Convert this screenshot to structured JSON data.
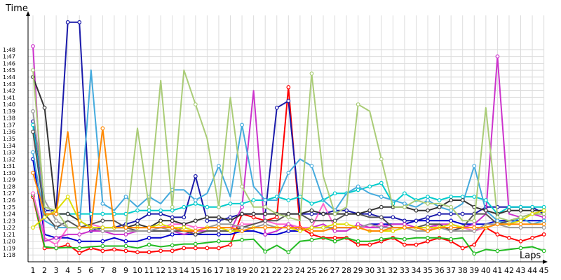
{
  "chart_data": {
    "type": "line",
    "ylabel": "Time",
    "xlabel": "Laps",
    "x": [
      1,
      2,
      3,
      4,
      5,
      6,
      7,
      8,
      9,
      10,
      11,
      12,
      13,
      14,
      15,
      16,
      17,
      18,
      19,
      20,
      21,
      22,
      23,
      24,
      25,
      26,
      27,
      28,
      29,
      30,
      31,
      32,
      33,
      34,
      35,
      36,
      37,
      38,
      39,
      40,
      41,
      42,
      43,
      44,
      45
    ],
    "x_tick_labels": [
      "1",
      "2",
      "3",
      "4",
      "5",
      "6",
      "7",
      "8",
      "9",
      "10",
      "11",
      "12",
      "13",
      "14",
      "15",
      "16",
      "17",
      "18",
      "19",
      "20",
      "21",
      "22",
      "23",
      "24",
      "25",
      "26",
      "27",
      "28",
      "29",
      "30",
      "31",
      "32",
      "33",
      "34",
      "35",
      "36",
      "37",
      "38",
      "39",
      "40",
      "41",
      "42",
      "43",
      "44",
      "45"
    ],
    "ylim": [
      77,
      113
    ],
    "y_tick_labels": [
      "1:18",
      "1:19",
      "1:20",
      "1:21",
      "1:22",
      "1:23",
      "1:24",
      "1:25",
      "1:26",
      "1:27",
      "1:28",
      "1:29",
      "1:30",
      "1:31",
      "1:32",
      "1:33",
      "1:34",
      "1:35",
      "1:36",
      "1:37",
      "1:38",
      "1:39",
      "1:40",
      "1:41",
      "1:42",
      "1:43",
      "1:44",
      "1:45",
      "1:46",
      "1:47",
      "1:48"
    ],
    "y_tick_values": [
      78,
      79,
      80,
      81,
      82,
      83,
      84,
      85,
      86,
      87,
      88,
      89,
      90,
      91,
      92,
      93,
      94,
      95,
      96,
      97,
      98,
      99,
      100,
      101,
      102,
      103,
      104,
      105,
      106,
      107,
      108
    ],
    "grid": true,
    "series": [
      {
        "color": "#ff0000",
        "values": [
          86.5,
          79.0,
          79.0,
          79.5,
          78.3,
          79.0,
          78.6,
          78.8,
          78.6,
          78.4,
          78.4,
          78.6,
          78.6,
          79.0,
          79.0,
          79.0,
          79.0,
          79.5,
          84.0,
          83.5,
          83.0,
          83.5,
          102.5,
          82.0,
          81.0,
          80.5,
          80.5,
          80.5,
          79.5,
          79.5,
          80.0,
          80.5,
          79.5,
          79.5,
          80.0,
          80.5,
          80.0,
          79.0,
          79.5,
          82.0,
          81.0,
          80.5,
          80.0,
          80.5,
          81.0
        ]
      },
      {
        "color": "#22bb22",
        "values": [
          86.8,
          79.2,
          79.0,
          79.1,
          79.0,
          79.2,
          79.3,
          79.3,
          79.3,
          79.0,
          79.5,
          79.2,
          79.4,
          79.6,
          79.6,
          79.8,
          80.0,
          80.0,
          80.2,
          80.3,
          78.5,
          79.4,
          78.4,
          80.0,
          80.2,
          80.5,
          80.0,
          80.5,
          80.0,
          80.0,
          80.3,
          80.5,
          80.3,
          80.5,
          80.5,
          80.5,
          80.3,
          80.5,
          78.2,
          78.8,
          78.6,
          78.8,
          79.0,
          79.2,
          78.6
        ]
      },
      {
        "color": "#0000cc",
        "values": [
          92.0,
          81.0,
          80.5,
          80.5,
          80.0,
          80.0,
          80.0,
          80.5,
          80.0,
          80.0,
          80.5,
          80.5,
          81.0,
          81.0,
          81.0,
          81.0,
          81.0,
          81.0,
          81.5,
          81.5,
          81.0,
          81.0,
          81.5,
          81.5,
          82.0,
          82.0,
          82.0,
          82.0,
          82.0,
          82.5,
          82.5,
          82.5,
          82.5,
          83.0,
          83.0,
          83.0,
          83.0,
          82.5,
          82.5,
          82.5,
          83.0,
          83.0,
          83.0,
          83.0,
          83.0
        ]
      },
      {
        "color": "#1a1aaa",
        "values": [
          97.5,
          84.5,
          84.5,
          112,
          112,
          81.5,
          82.0,
          82.0,
          82.5,
          83.0,
          84.0,
          84.0,
          83.5,
          83.5,
          89.5,
          83.0,
          83.0,
          83.5,
          84.0,
          84.0,
          84.0,
          99.5,
          100.5,
          84.0,
          84.0,
          84.0,
          84.5,
          84.5,
          84.0,
          84.0,
          83.5,
          83.5,
          83.0,
          83.0,
          83.5,
          84.0,
          84.0,
          84.0,
          84.0,
          85.0,
          85.0,
          85.0,
          85.0,
          85.0,
          84.0
        ]
      },
      {
        "color": "#ff66cc",
        "values": [
          87.0,
          80.5,
          79.5,
          82.0,
          82.0,
          82.5,
          82.0,
          82.0,
          82.0,
          82.0,
          82.0,
          82.0,
          82.5,
          82.5,
          82.0,
          82.0,
          82.0,
          82.0,
          82.5,
          82.5,
          83.0,
          82.5,
          82.5,
          82.0,
          82.0,
          85.5,
          82.0,
          82.0,
          82.0,
          82.0,
          82.5,
          81.5,
          82.0,
          82.0,
          81.5,
          82.5,
          81.5,
          82.0,
          81.5,
          82.0,
          82.5,
          83.0,
          83.5,
          84.0,
          84.5
        ]
      },
      {
        "color": "#cc33cc",
        "values": [
          108.5,
          80.0,
          80.5,
          81.0,
          81.0,
          81.5,
          81.5,
          81.0,
          81.0,
          81.5,
          81.5,
          81.5,
          81.5,
          81.0,
          81.5,
          81.5,
          81.5,
          81.5,
          85.0,
          102.0,
          81.0,
          81.5,
          82.5,
          81.5,
          82.0,
          82.5,
          81.5,
          81.5,
          82.5,
          82.0,
          82.0,
          82.5,
          82.5,
          82.0,
          82.0,
          82.5,
          82.5,
          82.0,
          82.5,
          84.0,
          107.0,
          84.0,
          83.5,
          84.0,
          83.5
        ]
      },
      {
        "color": "#00cccc",
        "values": [
          97.0,
          84.0,
          84.0,
          84.0,
          84.0,
          84.0,
          84.0,
          84.0,
          84.0,
          84.5,
          84.5,
          84.5,
          84.5,
          85.0,
          85.5,
          85.0,
          85.0,
          85.5,
          85.5,
          86.0,
          86.0,
          86.5,
          86.0,
          86.5,
          85.5,
          86.0,
          87.0,
          87.0,
          87.5,
          88.0,
          88.5,
          85.5,
          87.0,
          86.0,
          86.5,
          86.0,
          86.5,
          86.5,
          86.5,
          86.0,
          84.0,
          85.0,
          85.0,
          85.0,
          85.0
        ]
      },
      {
        "color": "#44aadd",
        "values": [
          93.0,
          83.0,
          82.0,
          82.0,
          82.0,
          105.0,
          85.5,
          84.5,
          86.5,
          85.0,
          86.5,
          85.5,
          87.5,
          87.5,
          86.0,
          87.0,
          91.0,
          86.5,
          97.0,
          88.0,
          86.0,
          86.0,
          90.0,
          92.0,
          91.0,
          86.0,
          84.5,
          87.0,
          88.0,
          87.0,
          86.5,
          86.0,
          85.5,
          85.0,
          86.0,
          85.0,
          84.5,
          85.5,
          91.0,
          84.5,
          83.0,
          82.5,
          83.5,
          82.5,
          83.0
        ]
      },
      {
        "color": "#555555",
        "values": [
          96.0,
          84.0,
          82.0,
          83.0,
          82.0,
          82.5,
          83.0,
          83.0,
          82.0,
          81.5,
          81.5,
          81.5,
          81.5,
          81.5,
          81.0,
          81.5,
          81.5,
          81.5,
          82.0,
          82.5,
          83.0,
          83.0,
          84.0,
          84.0,
          83.0,
          83.0,
          83.0,
          84.0,
          84.0,
          83.5,
          83.5,
          82.0,
          82.0,
          82.0,
          82.5,
          82.5,
          81.5,
          82.0,
          84.0,
          84.0,
          82.5,
          83.0,
          83.5,
          84.0,
          84.0
        ]
      },
      {
        "color": "#333333",
        "values": [
          104.0,
          99.5,
          84.0,
          84.0,
          83.0,
          82.0,
          82.0,
          82.0,
          82.0,
          82.5,
          82.0,
          83.0,
          83.0,
          82.5,
          83.0,
          83.5,
          83.5,
          83.0,
          84.0,
          84.0,
          84.0,
          84.0,
          84.0,
          84.0,
          84.5,
          84.0,
          84.0,
          84.0,
          84.0,
          84.5,
          85.0,
          85.0,
          85.0,
          84.5,
          84.5,
          85.0,
          86.0,
          86.0,
          85.0,
          84.5,
          84.0,
          84.5,
          84.5,
          84.5,
          84.5
        ]
      },
      {
        "color": "#999999",
        "values": [
          99.0,
          86.0,
          83.0,
          82.0,
          82.0,
          82.0,
          81.5,
          81.5,
          81.5,
          81.5,
          81.5,
          82.0,
          81.5,
          82.0,
          81.5,
          82.0,
          82.5,
          82.5,
          82.0,
          82.0,
          82.5,
          82.0,
          82.0,
          81.5,
          82.0,
          82.0,
          82.0,
          82.0,
          82.0,
          82.5,
          82.0,
          82.0,
          82.0,
          81.5,
          81.5,
          82.0,
          81.5,
          81.5,
          81.5,
          82.5,
          82.5,
          82.0,
          82.0,
          82.0,
          82.0
        ]
      },
      {
        "color": "#aacc77",
        "values": [
          105.0,
          85.0,
          84.5,
          82.0,
          82.0,
          82.0,
          82.0,
          82.0,
          82.0,
          96.5,
          85.0,
          103.5,
          85.0,
          105.0,
          100.0,
          95.0,
          85.0,
          101.0,
          88.0,
          85.0,
          85.0,
          84.0,
          83.5,
          83.0,
          104.5,
          89.5,
          84.0,
          85.0,
          100.0,
          99.0,
          92.0,
          85.0,
          85.0,
          86.0,
          85.5,
          85.5,
          85.0,
          83.0,
          83.0,
          99.5,
          83.5,
          83.0,
          83.5,
          84.0,
          84.0
        ]
      },
      {
        "color": "#dddd00",
        "values": [
          82.0,
          83.5,
          84.5,
          86.5,
          83.0,
          82.0,
          82.0,
          82.0,
          82.0,
          82.0,
          82.0,
          82.5,
          82.0,
          82.0,
          81.5,
          82.0,
          82.0,
          81.5,
          81.5,
          82.0,
          82.0,
          82.0,
          82.0,
          81.5,
          82.0,
          82.0,
          82.5,
          82.5,
          82.0,
          81.5,
          81.5,
          81.5,
          82.0,
          82.0,
          82.0,
          82.0,
          82.5,
          82.0,
          82.0,
          82.0,
          82.5,
          82.5,
          83.0,
          84.0,
          84.5
        ]
      },
      {
        "color": "#ff8800",
        "values": [
          90.0,
          84.0,
          84.0,
          96.0,
          82.0,
          82.0,
          96.5,
          82.0,
          82.0,
          82.0,
          82.0,
          82.0,
          82.0,
          81.5,
          81.5,
          82.0,
          82.0,
          82.0,
          81.5,
          82.0,
          82.0,
          82.0,
          82.0,
          82.0,
          81.5,
          81.5,
          82.0,
          82.0,
          82.0,
          81.5,
          81.5,
          82.0,
          82.0,
          82.0,
          81.5,
          82.0,
          82.0,
          82.0,
          82.0,
          82.0,
          82.5,
          82.5,
          82.5,
          82.5,
          82.5
        ]
      }
    ]
  }
}
